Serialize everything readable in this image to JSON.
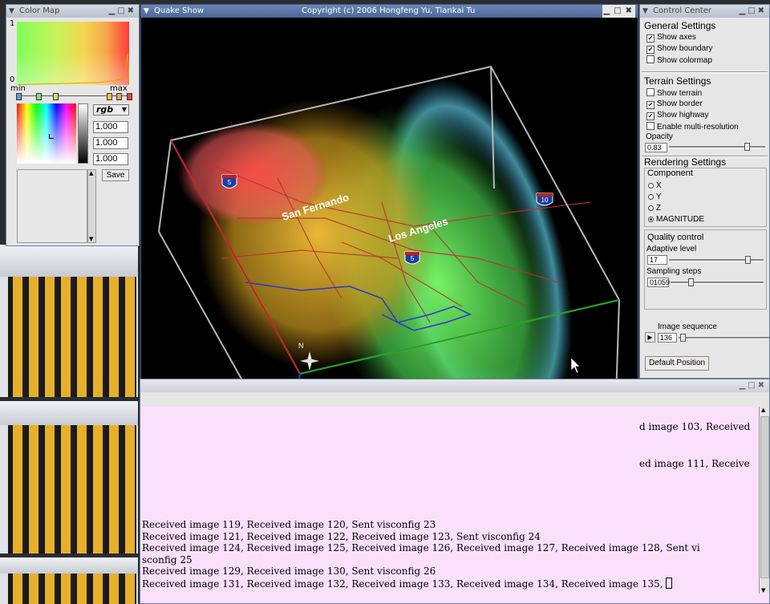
{
  "colormap": {
    "title": "Color Map",
    "axis_top": "1",
    "axis_bottom": "0",
    "min_label": "min",
    "max_label": "max",
    "mode": "rgb",
    "values": [
      "1.000",
      "1.000",
      "1.000"
    ],
    "save_label": "Save"
  },
  "main": {
    "title_left": "Quake Show",
    "title_center": "Copyright (c) 2006 Hongfeng Yu, Tiankai Tu",
    "labels": {
      "san_fernando": "San Fernando",
      "los_angeles": "Los Angeles",
      "north": "N"
    },
    "shields": [
      "5",
      "10",
      "5"
    ]
  },
  "control": {
    "title": "Control Center",
    "general": {
      "title": "General Settings",
      "items": [
        {
          "label": "Show axes",
          "checked": true
        },
        {
          "label": "Show boundary",
          "checked": true
        },
        {
          "label": "Show colormap",
          "checked": false
        }
      ]
    },
    "terrain": {
      "title": "Terrain Settings",
      "items": [
        {
          "label": "Show terrain",
          "checked": false
        },
        {
          "label": "Show border",
          "checked": true
        },
        {
          "label": "Show highway",
          "checked": true
        },
        {
          "label": "Enable multi-resolution",
          "checked": false
        }
      ],
      "opacity_label": "Opacity",
      "opacity_value": "0.83",
      "opacity_level": 0.83
    },
    "rendering": {
      "title": "Rendering Settings",
      "component_label": "Component",
      "components": [
        "X",
        "Y",
        "Z",
        "MAGNITUDE"
      ],
      "selected": "MAGNITUDE"
    },
    "quality": {
      "title": "Quality control",
      "adaptive_label": "Adaptive level",
      "adaptive_value": "17",
      "adaptive_level": 0.86,
      "sampling_label": "Sampling steps",
      "sampling_value": "01059",
      "sampling_level": 0.2
    },
    "sequence": {
      "label": "Image sequence",
      "value": "136"
    },
    "default_button": "Default Position"
  },
  "console": {
    "partial_lines": [
      "d image 103, Received",
      "ed image 111, Receive"
    ],
    "lines": [
      "Received image 119, Received image 120, Sent visconfig 23",
      "Received image 121, Received image 122, Received image 123, Sent visconfig 24",
      "Received image 124, Received image 125, Received image 126, Received image 127, Received image 128, Sent vi",
      "sconfig 25",
      "Received image 129, Received image 130, Sent visconfig 26",
      "Received image 131, Received image 132, Received image 133, Received image 134, Received image 135, "
    ]
  },
  "colors": {
    "titlebar": "#5673a4",
    "console_bg": "#fbe0fb",
    "render_bg": "#000000"
  }
}
